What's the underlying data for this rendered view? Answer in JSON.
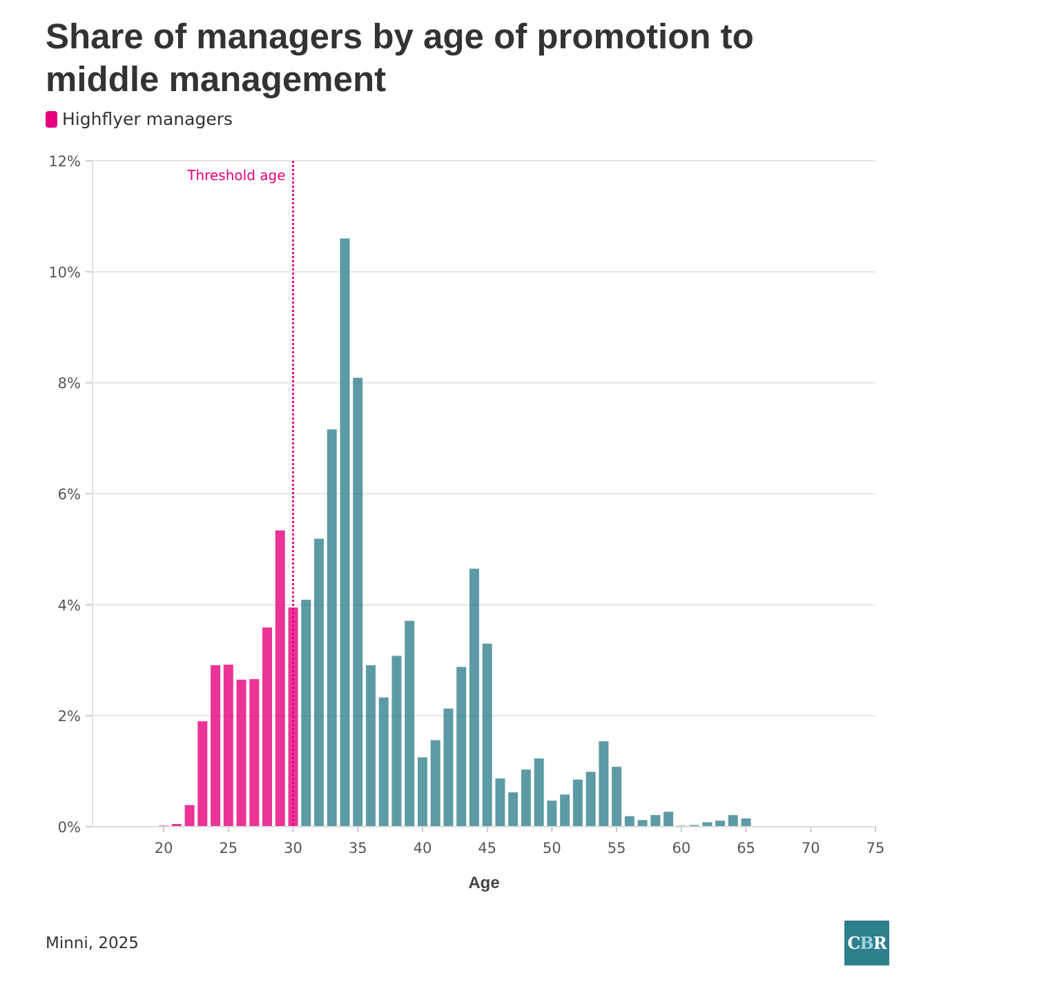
{
  "chart_data": {
    "type": "bar",
    "title": "Share of managers by age of promotion to middle management",
    "xlabel": "Age",
    "ylabel": "",
    "xlim": [
      14.5,
      75
    ],
    "ylim": [
      0,
      12
    ],
    "x_ticks": [
      20,
      25,
      30,
      35,
      40,
      45,
      50,
      55,
      60,
      65,
      70,
      75
    ],
    "y_ticks": [
      0,
      2,
      4,
      6,
      8,
      10,
      12
    ],
    "y_tick_format": "{v}%",
    "grid": true,
    "legend": {
      "position": "top-left",
      "entries": [
        "Highflyer managers"
      ]
    },
    "threshold": {
      "x": 30,
      "label": "Threshold age"
    },
    "highlight_max_age": 30,
    "colors": {
      "highflyer": "#e6007e",
      "other": "#2e7f8c",
      "threshold": "#e6007e"
    },
    "ages": [
      17,
      18,
      19,
      20,
      21,
      22,
      23,
      24,
      25,
      26,
      27,
      28,
      29,
      30,
      31,
      32,
      33,
      34,
      35,
      36,
      37,
      38,
      39,
      40,
      41,
      42,
      43,
      44,
      45,
      46,
      47,
      48,
      49,
      50,
      51,
      52,
      53,
      54,
      55,
      56,
      57,
      58,
      59,
      60,
      61,
      62,
      63,
      64,
      65,
      66,
      67,
      68,
      69,
      70,
      71,
      72,
      73,
      74
    ],
    "values": [
      0.01,
      0,
      0,
      0.02,
      0.05,
      0.39,
      1.9,
      2.91,
      2.92,
      2.65,
      2.66,
      3.59,
      5.34,
      3.95,
      4.09,
      5.19,
      7.16,
      10.6,
      8.09,
      2.91,
      2.33,
      3.08,
      3.71,
      1.25,
      1.56,
      2.13,
      2.88,
      4.65,
      3.3,
      0.87,
      0.62,
      1.03,
      1.23,
      0.47,
      0.58,
      0.85,
      0.99,
      1.54,
      1.08,
      0.19,
      0.12,
      0.21,
      0.27,
      0.02,
      0.03,
      0.08,
      0.11,
      0.21,
      0.15,
      0.01,
      0.01,
      0.01,
      0.005,
      0,
      0,
      0,
      0.005,
      0
    ]
  },
  "source": "Minni, 2025",
  "logo": {
    "text_c": "C",
    "text_b": "B",
    "text_r": "R"
  }
}
